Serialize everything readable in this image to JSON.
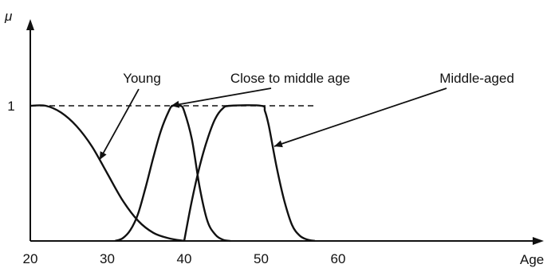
{
  "chart_data": {
    "type": "line",
    "title": "",
    "ylabel": "μ",
    "xlabel": "Age",
    "xlim": [
      20,
      66
    ],
    "ylim": [
      0,
      1
    ],
    "x_ticks": [
      20,
      30,
      40,
      50,
      60
    ],
    "y_ticks": [
      {
        "value": 1,
        "label": "1"
      }
    ],
    "reference_line": {
      "y": 1,
      "x_range": [
        20,
        57
      ],
      "style": "dashed"
    },
    "series": [
      {
        "name": "Young",
        "points": [
          [
            20,
            1
          ],
          [
            22,
            1
          ],
          [
            24,
            0.95
          ],
          [
            26,
            0.85
          ],
          [
            28,
            0.7
          ],
          [
            30,
            0.5
          ],
          [
            32,
            0.3
          ],
          [
            34,
            0.15
          ],
          [
            36,
            0.06
          ],
          [
            38,
            0.02
          ],
          [
            40,
            0
          ]
        ]
      },
      {
        "name": "Close to middle age",
        "points": [
          [
            31,
            0
          ],
          [
            32,
            0.02
          ],
          [
            33,
            0.08
          ],
          [
            34,
            0.2
          ],
          [
            35,
            0.4
          ],
          [
            36,
            0.62
          ],
          [
            37,
            0.82
          ],
          [
            38,
            0.96
          ],
          [
            38.5,
            1
          ],
          [
            39.5,
            1
          ],
          [
            40,
            0.96
          ],
          [
            41,
            0.75
          ],
          [
            42,
            0.4
          ],
          [
            43,
            0.15
          ],
          [
            44,
            0.05
          ],
          [
            45,
            0.01
          ],
          [
            46,
            0
          ]
        ]
      },
      {
        "name": "Middle-aged",
        "points": [
          [
            40,
            0
          ],
          [
            41,
            0.3
          ],
          [
            42,
            0.55
          ],
          [
            43,
            0.75
          ],
          [
            44,
            0.9
          ],
          [
            45,
            0.98
          ],
          [
            46,
            1
          ],
          [
            50,
            1
          ],
          [
            50.5,
            0.96
          ],
          [
            51,
            0.85
          ],
          [
            52,
            0.55
          ],
          [
            53,
            0.3
          ],
          [
            54,
            0.12
          ],
          [
            55,
            0.04
          ],
          [
            56,
            0.01
          ],
          [
            57,
            0
          ]
        ]
      }
    ],
    "annotations": [
      {
        "text": "Young",
        "target_series": 0,
        "point": [
          29,
          0.6
        ]
      },
      {
        "text": "Close to middle age",
        "target_series": 1,
        "point": [
          38.3,
          1
        ]
      },
      {
        "text": "Middle-aged",
        "target_series": 2,
        "point": [
          51.7,
          0.7
        ]
      }
    ]
  }
}
